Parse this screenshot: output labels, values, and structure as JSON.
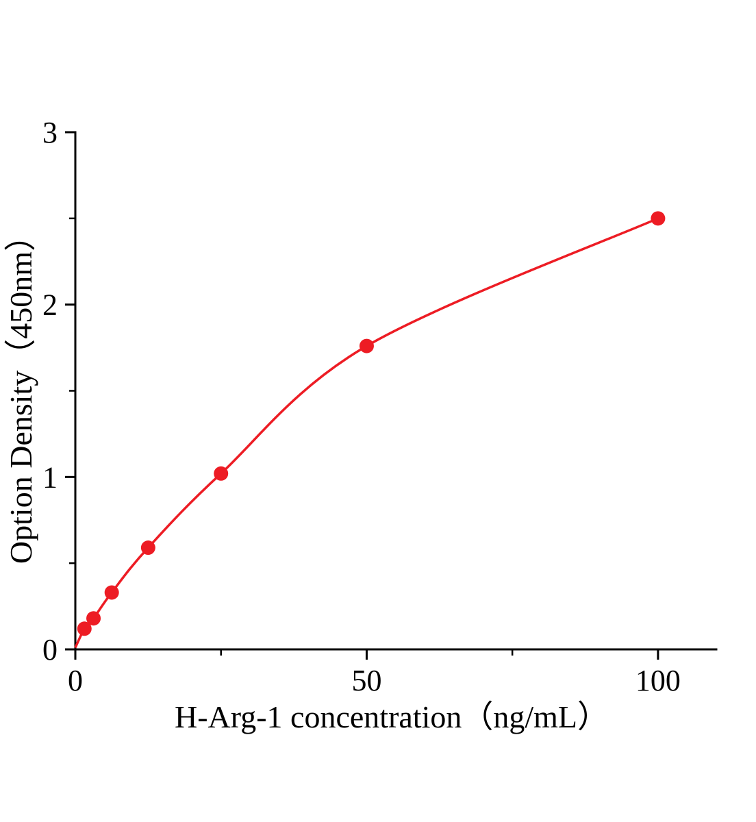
{
  "chart_data": {
    "type": "scatter",
    "title": "",
    "xlabel": "H-Arg-1 concentration（ng/mL）",
    "ylabel": "Option Density（450nm）",
    "x": [
      1.56,
      3.12,
      6.25,
      12.5,
      25,
      50,
      100
    ],
    "y": [
      0.12,
      0.18,
      0.33,
      0.59,
      1.02,
      1.76,
      2.5
    ],
    "curve_origin": {
      "x": 0,
      "y": 0.01
    },
    "xlim": [
      0,
      110
    ],
    "ylim": [
      0,
      3
    ],
    "x_major_ticks": [
      0,
      50,
      100
    ],
    "x_minor_ticks": [
      25,
      75
    ],
    "y_major_ticks": [
      0,
      1,
      2,
      3
    ],
    "y_minor_ticks": [
      0.5,
      1.5,
      2.5
    ],
    "legend": null,
    "grid": false,
    "line_color": "#ed1c24",
    "marker_color": "#ed1c24",
    "axis_color": "#000000"
  }
}
